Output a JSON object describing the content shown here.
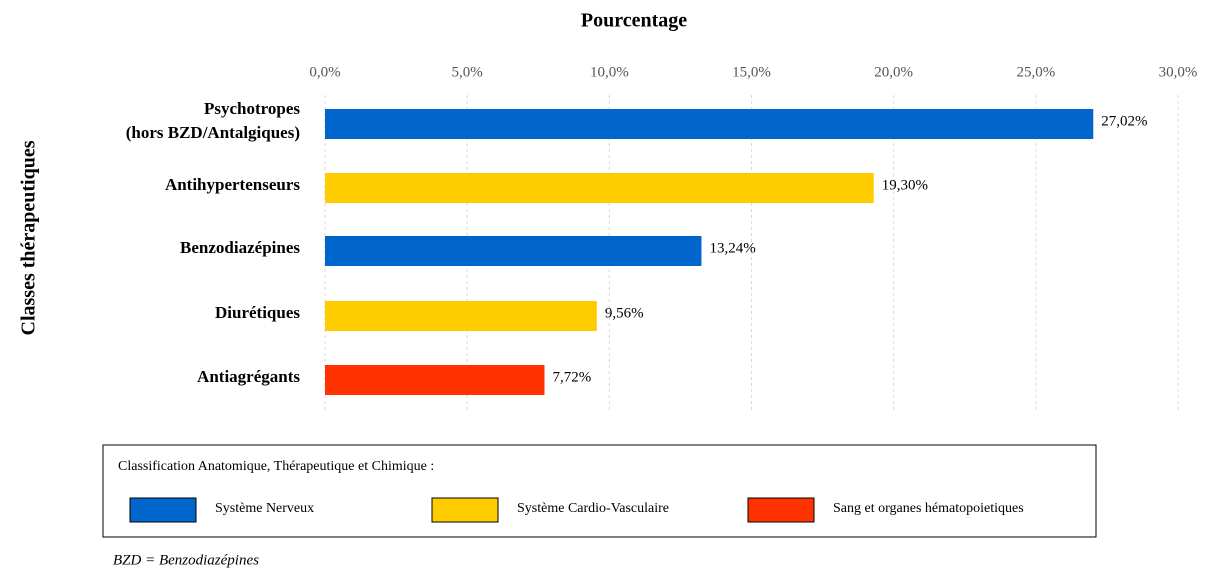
{
  "chart_data": {
    "type": "barh",
    "title": "Pourcentage",
    "y_label": "Classes thérapeutiques",
    "categories": [
      [
        "Psychotropes",
        "(hors BZD/Antalgiques)"
      ],
      [
        "Antihypertenseurs"
      ],
      [
        "Benzodiazépines"
      ],
      [
        "Diurétiques"
      ],
      [
        "Antiagrégants"
      ]
    ],
    "values": [
      27.02,
      19.3,
      13.24,
      9.56,
      7.72
    ],
    "value_labels": [
      "27,02%",
      "19,30%",
      "13,24%",
      "9,56%",
      "7,72%"
    ],
    "colors": [
      "#0066cc",
      "#ffcc00",
      "#0066cc",
      "#ffcc00",
      "#ff3300"
    ],
    "xlim": [
      0,
      30
    ],
    "xticks": [
      {
        "value": 0,
        "label": "0,0%"
      },
      {
        "value": 5,
        "label": "5,0%"
      },
      {
        "value": 10,
        "label": "10,0%"
      },
      {
        "value": 15,
        "label": "15,0%"
      },
      {
        "value": 20,
        "label": "20,0%"
      },
      {
        "value": 25,
        "label": "25,0%"
      },
      {
        "value": 30,
        "label": "30,0%"
      }
    ],
    "grid": true,
    "legend": {
      "title": "Classification Anatomique, Thérapeutique  et Chimique :",
      "items": [
        {
          "name": "Système Nerveux",
          "color": "#0066cc"
        },
        {
          "name": "Système Cardio-Vasculaire",
          "color": "#ffcc00"
        },
        {
          "name": "Sang et organes  hématopoietiques",
          "color": "#ff3300"
        }
      ]
    },
    "footnote": "BZD = Benzodiazépines"
  }
}
